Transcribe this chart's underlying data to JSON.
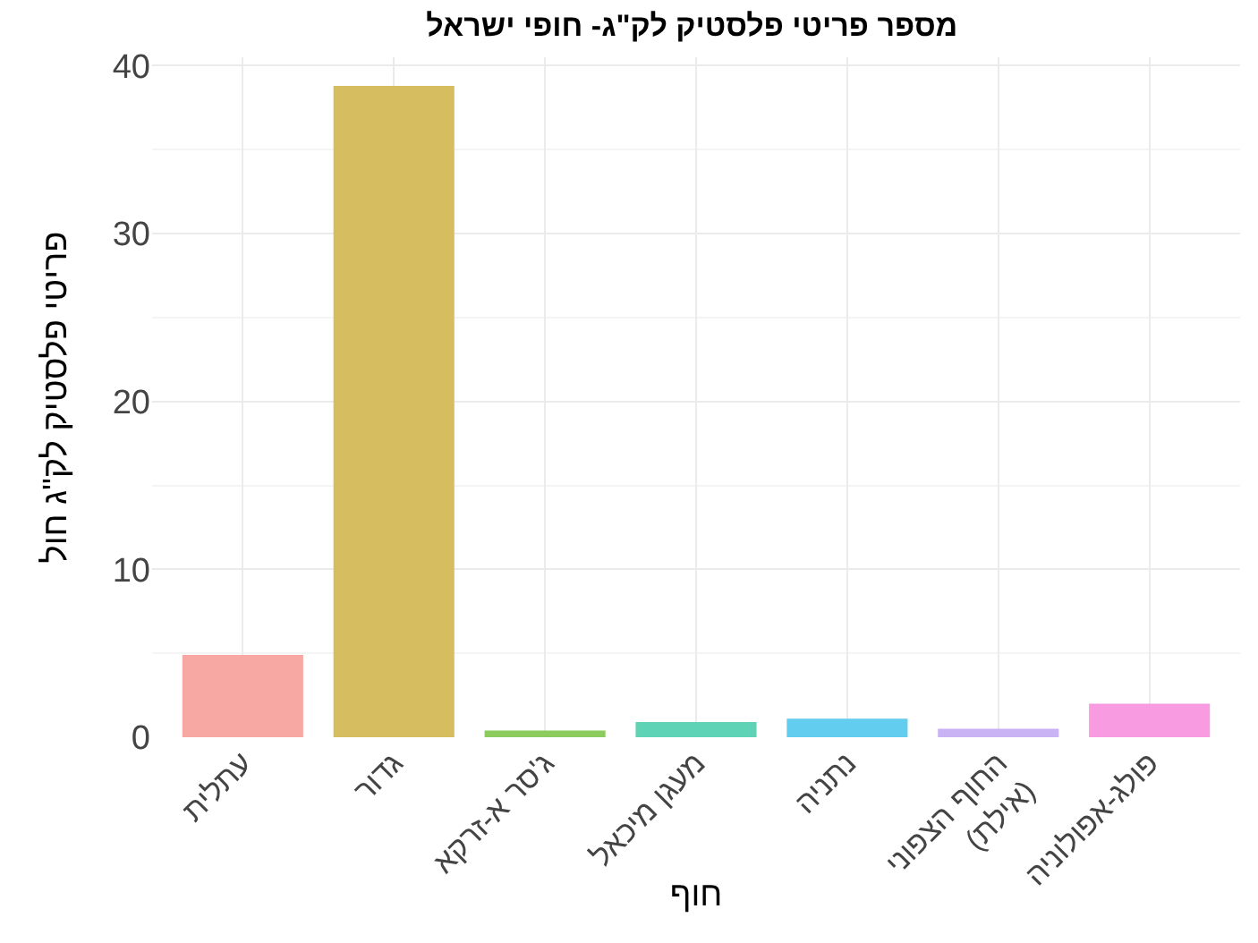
{
  "chart_data": {
    "type": "bar",
    "title": "מספר פריטי פלסטיק לק\"ג- חופי ישראל",
    "xlabel": "חוף",
    "ylabel": "פריטי פלסטיק לק\"ג חול",
    "categories": [
      "עתלית",
      "גדור",
      "ג'סר א-זרקא",
      "מעגן מיכאל",
      "נתניה",
      "החוף הצפוני\n(אילת)",
      "פולג-אפולוניה"
    ],
    "values": [
      4.9,
      38.8,
      0.4,
      0.9,
      1.1,
      0.5,
      2.0
    ],
    "colors": [
      "#f8a8a3",
      "#d6bd60",
      "#8ccb5e",
      "#5fd3b6",
      "#62cdee",
      "#c9b3f5",
      "#f89be0"
    ],
    "ylim": [
      0,
      40.5
    ],
    "yticks": [
      0,
      10,
      20,
      30,
      40
    ],
    "grid": true
  }
}
